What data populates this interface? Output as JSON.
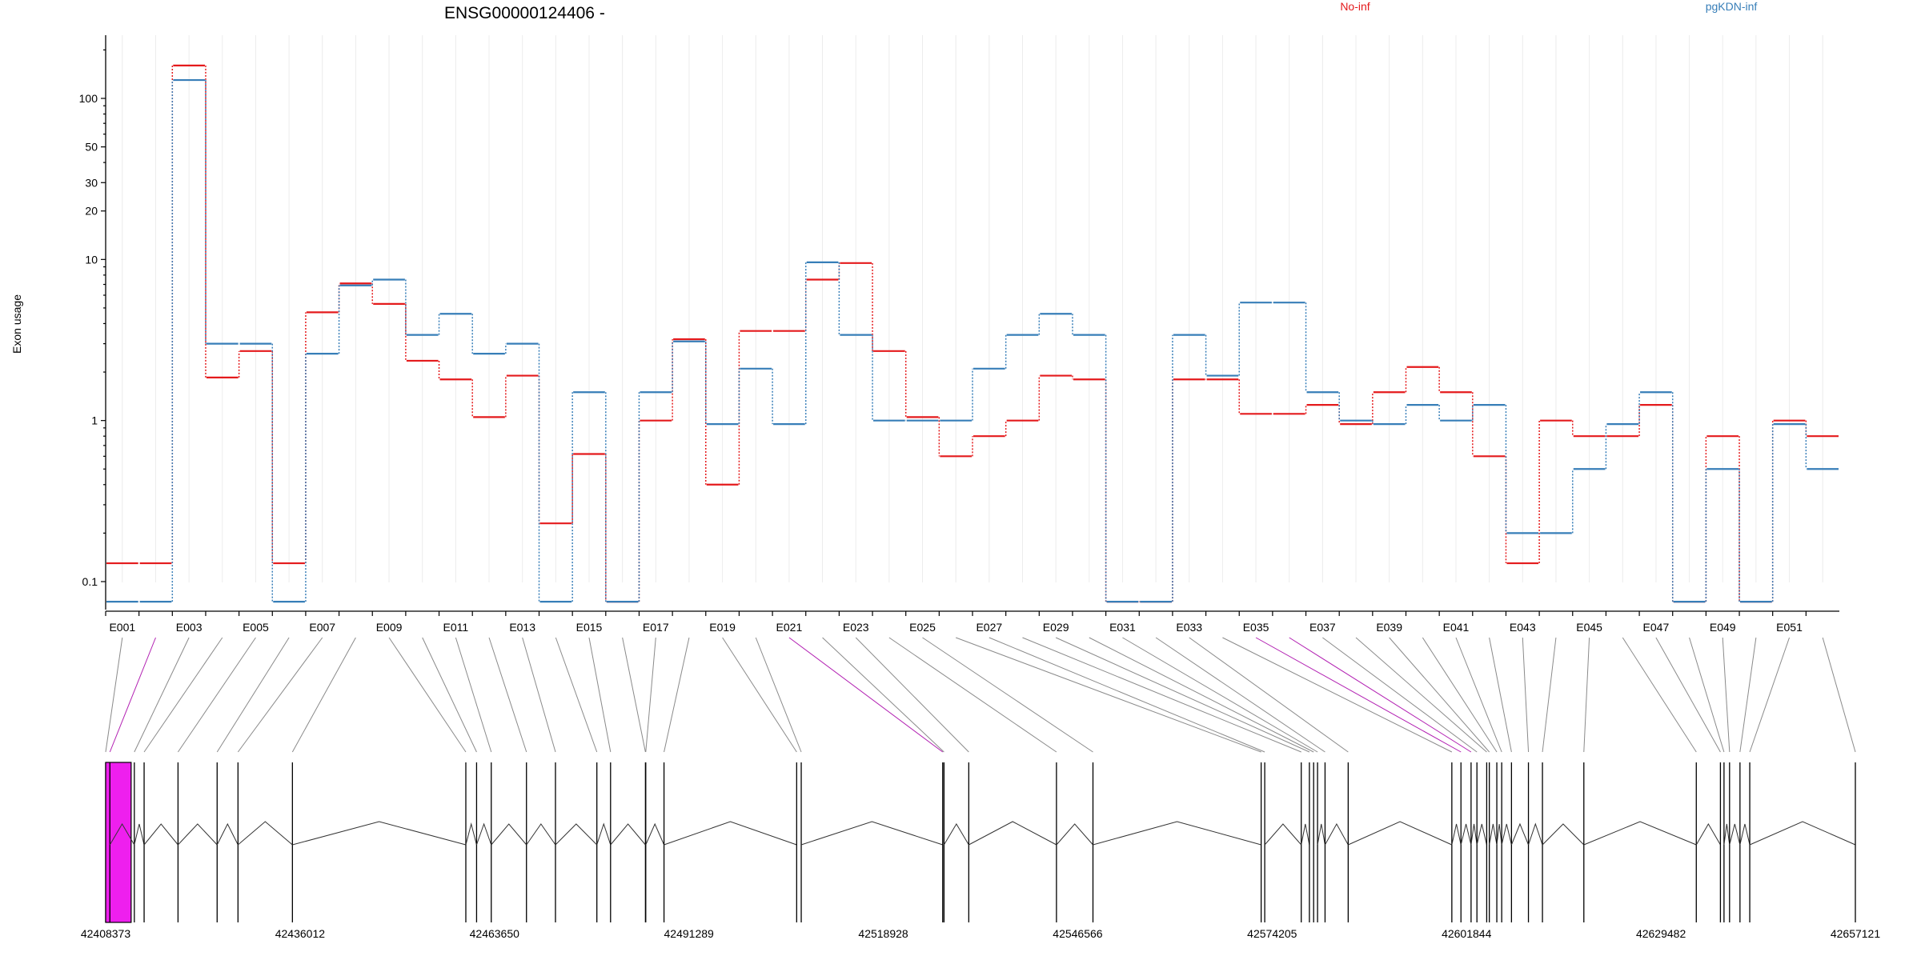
{
  "chart_data": {
    "type": "line",
    "title": "ENSG00000124406 -",
    "xlabel": "",
    "ylabel": "Exon usage",
    "y_scale": "log",
    "ylim": [
      0.07,
      200
    ],
    "y_ticks": [
      0.1,
      1,
      10,
      20,
      30,
      50,
      100
    ],
    "y_tick_labels": [
      "0.1",
      "1",
      "10",
      "20",
      "30",
      "50",
      "100"
    ],
    "legend_placement": "top",
    "categories": [
      "E001",
      "E002",
      "E003",
      "E004",
      "E005",
      "E006",
      "E007",
      "E008",
      "E009",
      "E010",
      "E011",
      "E012",
      "E013",
      "E014",
      "E015",
      "E016",
      "E017",
      "E018",
      "E019",
      "E020",
      "E021",
      "E022",
      "E023",
      "E024",
      "E025",
      "E026",
      "E027",
      "E028",
      "E029",
      "E030",
      "E031",
      "E032",
      "E033",
      "E034",
      "E035",
      "E036",
      "E037",
      "E038",
      "E039",
      "E040",
      "E041",
      "E042",
      "E043",
      "E044",
      "E045",
      "E046",
      "E047",
      "E048",
      "E049",
      "E050",
      "E051",
      "E052"
    ],
    "x_tick_labels": [
      "E001",
      "E003",
      "E005",
      "E007",
      "E009",
      "E011",
      "E013",
      "E015",
      "E017",
      "E019",
      "E021",
      "E023",
      "E025",
      "E027",
      "E029",
      "E031",
      "E033",
      "E035",
      "E037",
      "E039",
      "E041",
      "E043",
      "E045",
      "E047",
      "E049",
      "E051"
    ],
    "series": [
      {
        "name": "No-inf",
        "color": "#e41a1c",
        "values": [
          0.13,
          0.13,
          160,
          1.85,
          2.7,
          0.13,
          4.7,
          7.1,
          5.3,
          2.35,
          1.8,
          1.05,
          1.9,
          0.23,
          0.62,
          0.075,
          1.0,
          3.2,
          0.4,
          3.6,
          3.6,
          7.5,
          9.5,
          2.7,
          1.05,
          0.6,
          0.8,
          1.0,
          1.9,
          1.8,
          0.075,
          0.075,
          1.8,
          1.8,
          1.1,
          1.1,
          1.25,
          0.95,
          1.5,
          2.15,
          1.5,
          0.6,
          0.13,
          1.0,
          0.8,
          0.8,
          1.25,
          0.075,
          0.8,
          0.075,
          1.0,
          0.8
        ]
      },
      {
        "name": "pgKDN-inf",
        "color": "#377eb8",
        "values": [
          0.075,
          0.075,
          130,
          3.0,
          3.0,
          0.075,
          2.6,
          6.9,
          7.5,
          3.4,
          4.6,
          2.6,
          3.0,
          0.075,
          1.5,
          0.075,
          1.5,
          3.1,
          0.95,
          2.1,
          0.95,
          9.6,
          3.4,
          1.0,
          1.0,
          1.0,
          2.1,
          3.4,
          4.6,
          3.4,
          0.075,
          0.075,
          3.4,
          1.9,
          5.4,
          5.4,
          1.5,
          1.0,
          0.95,
          1.25,
          1.0,
          1.25,
          0.2,
          0.2,
          0.5,
          0.95,
          1.5,
          0.075,
          0.5,
          0.075,
          0.95,
          0.5
        ]
      }
    ],
    "exon_gene_positions": [
      0,
      13,
      88,
      118,
      222,
      342,
      406,
      573,
      1105,
      1138,
      1183,
      1291,
      1380,
      1507,
      1549,
      1656,
      1657,
      1713,
      2120,
      2134,
      2568,
      2572,
      2648,
      2917,
      3029,
      3545,
      3556,
      3668,
      3693,
      3706,
      3718,
      3741,
      3812,
      4130,
      4158,
      4189,
      4207,
      4237,
      4245,
      4268,
      4283,
      4313,
      4365,
      4408,
      4535,
      4880,
      4954,
      4965,
      4982,
      5014,
      5044,
      5368
    ],
    "highlighted_exons": [
      "E002",
      "E021",
      "E035",
      "E036"
    ],
    "gene_axis_tick_labels": [
      "42408373",
      "42436012",
      "42463650",
      "42491289",
      "42518928",
      "42546566",
      "42574205",
      "42601844",
      "42629482",
      "42657121"
    ],
    "highlight_color": "#ee1fee"
  }
}
